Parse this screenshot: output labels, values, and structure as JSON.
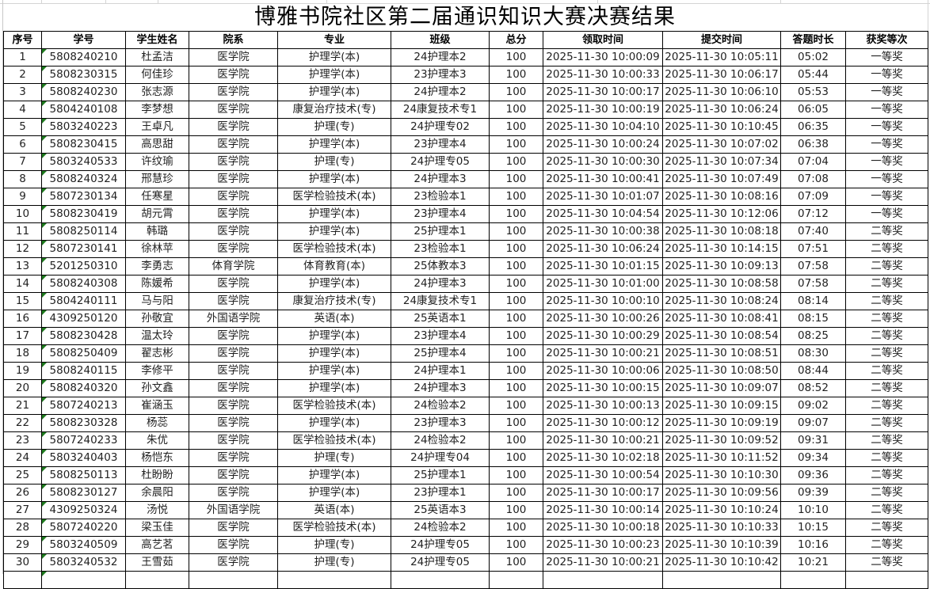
{
  "title": "博雅书院社区第二届通识知识大赛决赛结果",
  "headers": [
    "序号",
    "学号",
    "学生姓名",
    "院系",
    "专业",
    "班级",
    "总分",
    "领取时间",
    "提交时间",
    "答题时长",
    "获奖等次"
  ],
  "rows": [
    [
      "1",
      "5808240210",
      "杜孟洁",
      "医学院",
      "护理学(本)",
      "24护理本2",
      "100",
      "2025-11-30 10:00:09",
      "2025-11-30 10:05:11",
      "05:02",
      "一等奖"
    ],
    [
      "2",
      "5808230315",
      "何佳珍",
      "医学院",
      "护理学(本)",
      "23护理本3",
      "100",
      "2025-11-30 10:00:33",
      "2025-11-30 10:06:17",
      "05:44",
      "一等奖"
    ],
    [
      "3",
      "5808240230",
      "张志源",
      "医学院",
      "护理学(本)",
      "24护理本2",
      "100",
      "2025-11-30 10:00:17",
      "2025-11-30 10:06:10",
      "05:53",
      "一等奖"
    ],
    [
      "4",
      "5804240108",
      "李梦想",
      "医学院",
      "康复治疗技术(专)",
      "24康复技术专1",
      "100",
      "2025-11-30 10:00:19",
      "2025-11-30 10:06:24",
      "06:05",
      "一等奖"
    ],
    [
      "5",
      "5803240223",
      "王卓凡",
      "医学院",
      "护理(专)",
      "24护理专02",
      "100",
      "2025-11-30 10:04:10",
      "2025-11-30 10:10:45",
      "06:35",
      "一等奖"
    ],
    [
      "6",
      "5808230415",
      "高思甜",
      "医学院",
      "护理学(本)",
      "23护理本4",
      "100",
      "2025-11-30 10:00:24",
      "2025-11-30 10:07:02",
      "06:38",
      "一等奖"
    ],
    [
      "7",
      "5803240533",
      "许纹瑜",
      "医学院",
      "护理(专)",
      "24护理专05",
      "100",
      "2025-11-30 10:00:30",
      "2025-11-30 10:07:34",
      "07:04",
      "一等奖"
    ],
    [
      "8",
      "5808240324",
      "邢慧珍",
      "医学院",
      "护理学(本)",
      "24护理本3",
      "100",
      "2025-11-30 10:00:41",
      "2025-11-30 10:07:49",
      "07:08",
      "一等奖"
    ],
    [
      "9",
      "5807230134",
      "任寒星",
      "医学院",
      "医学检验技术(本)",
      "23检验本1",
      "100",
      "2025-11-30 10:01:07",
      "2025-11-30 10:08:16",
      "07:09",
      "一等奖"
    ],
    [
      "10",
      "5808230419",
      "胡元霄",
      "医学院",
      "护理学(本)",
      "23护理本4",
      "100",
      "2025-11-30 10:04:54",
      "2025-11-30 10:12:06",
      "07:12",
      "一等奖"
    ],
    [
      "11",
      "5808250114",
      "韩璐",
      "医学院",
      "护理学(本)",
      "25护理本1",
      "100",
      "2025-11-30 10:00:38",
      "2025-11-30 10:08:18",
      "07:40",
      "二等奖"
    ],
    [
      "12",
      "5807230141",
      "徐林苹",
      "医学院",
      "医学检验技术(本)",
      "23检验本1",
      "100",
      "2025-11-30 10:06:24",
      "2025-11-30 10:14:15",
      "07:51",
      "二等奖"
    ],
    [
      "13",
      "5201250310",
      "李勇志",
      "体育学院",
      "体育教育(本)",
      "25体教本3",
      "100",
      "2025-11-30 10:01:15",
      "2025-11-30 10:09:13",
      "07:58",
      "二等奖"
    ],
    [
      "14",
      "5808240308",
      "陈媛希",
      "医学院",
      "护理学(本)",
      "24护理本3",
      "100",
      "2025-11-30 10:01:00",
      "2025-11-30 10:08:58",
      "07:58",
      "二等奖"
    ],
    [
      "15",
      "5804240111",
      "马与阳",
      "医学院",
      "康复治疗技术(专)",
      "24康复技术专1",
      "100",
      "2025-11-30 10:00:10",
      "2025-11-30 10:08:24",
      "08:14",
      "二等奖"
    ],
    [
      "16",
      "4309250120",
      "孙敬宜",
      "外国语学院",
      "英语(本)",
      "25英语本1",
      "100",
      "2025-11-30 10:00:26",
      "2025-11-30 10:08:41",
      "08:15",
      "二等奖"
    ],
    [
      "17",
      "5808230428",
      "温太玲",
      "医学院",
      "护理学(本)",
      "23护理本4",
      "100",
      "2025-11-30 10:00:29",
      "2025-11-30 10:08:54",
      "08:25",
      "二等奖"
    ],
    [
      "18",
      "5808250409",
      "翟志彬",
      "医学院",
      "护理学(本)",
      "25护理本4",
      "100",
      "2025-11-30 10:00:21",
      "2025-11-30 10:08:51",
      "08:30",
      "二等奖"
    ],
    [
      "19",
      "5808240115",
      "李修平",
      "医学院",
      "护理学(本)",
      "24护理本1",
      "100",
      "2025-11-30 10:00:06",
      "2025-11-30 10:08:50",
      "08:44",
      "二等奖"
    ],
    [
      "20",
      "5808240320",
      "孙文鑫",
      "医学院",
      "护理学(本)",
      "24护理本3",
      "100",
      "2025-11-30 10:00:15",
      "2025-11-30 10:09:07",
      "08:52",
      "二等奖"
    ],
    [
      "21",
      "5807240213",
      "崔涵玉",
      "医学院",
      "医学检验技术(本)",
      "24检验本2",
      "100",
      "2025-11-30 10:00:13",
      "2025-11-30 10:09:15",
      "09:02",
      "二等奖"
    ],
    [
      "22",
      "5808230328",
      "杨蕊",
      "医学院",
      "护理学(本)",
      "23护理本3",
      "100",
      "2025-11-30 10:00:12",
      "2025-11-30 10:09:19",
      "09:07",
      "二等奖"
    ],
    [
      "23",
      "5807240233",
      "朱优",
      "医学院",
      "医学检验技术(本)",
      "24检验本2",
      "100",
      "2025-11-30 10:00:21",
      "2025-11-30 10:09:52",
      "09:31",
      "二等奖"
    ],
    [
      "24",
      "5803240403",
      "杨恺东",
      "医学院",
      "护理(专)",
      "24护理专04",
      "100",
      "2025-11-30 10:02:18",
      "2025-11-30 10:11:52",
      "09:34",
      "二等奖"
    ],
    [
      "25",
      "5808250113",
      "杜盼盼",
      "医学院",
      "护理学(本)",
      "25护理本1",
      "100",
      "2025-11-30 10:00:54",
      "2025-11-30 10:10:30",
      "09:36",
      "二等奖"
    ],
    [
      "26",
      "5808230127",
      "余晨阳",
      "医学院",
      "护理学(本)",
      "23护理本1",
      "100",
      "2025-11-30 10:00:17",
      "2025-11-30 10:09:56",
      "09:39",
      "二等奖"
    ],
    [
      "27",
      "4309250324",
      "汤悦",
      "外国语学院",
      "英语(本)",
      "25英语本3",
      "100",
      "2025-11-30 10:00:14",
      "2025-11-30 10:10:24",
      "10:10",
      "二等奖"
    ],
    [
      "28",
      "5807240220",
      "梁玉佳",
      "医学院",
      "医学检验技术(本)",
      "24检验本2",
      "100",
      "2025-11-30 10:00:18",
      "2025-11-30 10:10:33",
      "10:15",
      "二等奖"
    ],
    [
      "29",
      "5803240509",
      "高艺茗",
      "医学院",
      "护理(专)",
      "24护理专05",
      "100",
      "2025-11-30 10:00:23",
      "2025-11-30 10:10:39",
      "10:16",
      "二等奖"
    ],
    [
      "30",
      "5803240532",
      "王雪茹",
      "医学院",
      "护理(专)",
      "24护理专05",
      "100",
      "2025-11-30 10:00:21",
      "2025-11-30 10:10:42",
      "10:21",
      "二等奖"
    ]
  ]
}
